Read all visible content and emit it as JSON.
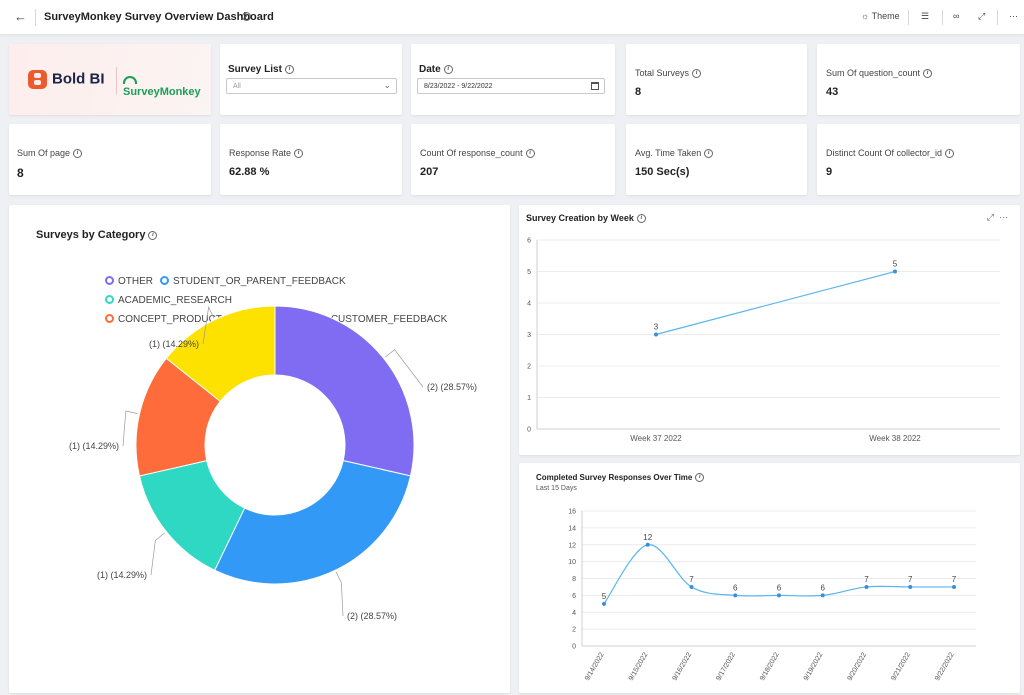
{
  "header": {
    "title": "SurveyMonkey Survey Overview Dashboard",
    "theme_label": "Theme"
  },
  "logos": {
    "boldbi": "Bold BI",
    "surveymonkey": "SurveyMonkey"
  },
  "filters": {
    "survey_list": {
      "label": "Survey List",
      "value": "All"
    },
    "date": {
      "label": "Date",
      "value": "8/23/2022 - 9/22/2022"
    }
  },
  "kpis": {
    "total_surveys": {
      "label": "Total Surveys",
      "value": "8"
    },
    "sum_question_count": {
      "label": "Sum Of question_count",
      "value": "43"
    },
    "sum_page": {
      "label": "Sum Of page",
      "value": "8"
    },
    "response_rate": {
      "label": "Response Rate",
      "value": "62.88 %"
    },
    "count_response_count": {
      "label": "Count Of response_count",
      "value": "207"
    },
    "avg_time_taken": {
      "label": "Avg. Time Taken",
      "value": "150 Sec(s)"
    },
    "distinct_collector_id": {
      "label": "Distinct Count Of collector_id",
      "value": "9"
    }
  },
  "colors": {
    "other": "#7f6cf2",
    "student_or_parent_feedback": "#3399f7",
    "academic_research": "#2ed8c3",
    "concept_product_or_ad_testing": "#ff6c3b",
    "customer_feedback": "#fde200",
    "line": "#5ab5ee"
  },
  "chart_data": [
    {
      "type": "pie",
      "title": "Surveys by Category",
      "legend_position": "top",
      "categories": [
        "OTHER",
        "STUDENT_OR_PARENT_FEEDBACK",
        "ACADEMIC_RESEARCH",
        "CONCEPT_PRODUCT_OR_AD_TESTING",
        "CUSTOMER_FEEDBACK"
      ],
      "values": [
        2,
        2,
        1,
        1,
        1
      ],
      "labels": [
        "(2) (28.57%)",
        "(2) (28.57%)",
        "(1) (14.29%)",
        "(1) (14.29%)",
        "(1) (14.29%)"
      ]
    },
    {
      "type": "line",
      "title": "Survey Creation by Week",
      "x": [
        "Week 37 2022",
        "Week 38 2022"
      ],
      "values": [
        3,
        5
      ],
      "yticks": [
        "0",
        "1",
        "2",
        "3",
        "4",
        "5",
        "6"
      ],
      "ylim": [
        0,
        6
      ],
      "grid": "horizontal"
    },
    {
      "type": "line",
      "title": "Completed Survey Responses Over Time",
      "subtitle": "Last 15 Days",
      "x": [
        "9/14/2022",
        "9/15/2022",
        "9/16/2022",
        "9/17/2022",
        "9/18/2022",
        "9/19/2022",
        "9/20/2022",
        "9/21/2022",
        "9/22/2022"
      ],
      "values": [
        5,
        12,
        7,
        6,
        6,
        6,
        7,
        7,
        7
      ],
      "yticks": [
        "0",
        "2",
        "4",
        "6",
        "8",
        "10",
        "12",
        "14",
        "16"
      ],
      "ylim": [
        0,
        16
      ],
      "grid": "horizontal"
    }
  ]
}
